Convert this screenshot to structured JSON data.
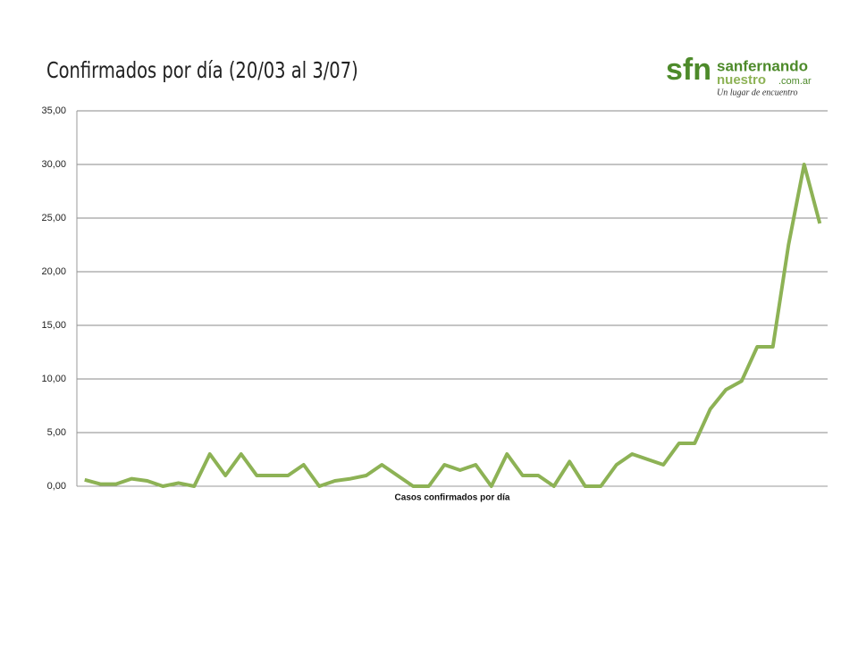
{
  "chart_data": {
    "type": "line",
    "title": "Confirmados por día (20/03 al 3/07)",
    "logo": {
      "mark": "sfn",
      "name": "sanfernando",
      "sub": "nuestro",
      "domain": ".com.ar",
      "tagline": "Un lugar de encuentro"
    },
    "categories": [
      null,
      null,
      null,
      null,
      null,
      null,
      null,
      null,
      null,
      null,
      null,
      null,
      null,
      null,
      null,
      null,
      null,
      null,
      null,
      null,
      null,
      null,
      null,
      null,
      null,
      null,
      null,
      null,
      null,
      null,
      null,
      null,
      null,
      null,
      null,
      null,
      null,
      null,
      null,
      null,
      null,
      null,
      null,
      null,
      null,
      null,
      null,
      null
    ],
    "series": [
      {
        "name": "Casos confirmados  por día",
        "color": "#8db255",
        "values": [
          0.6,
          0.2,
          0.2,
          0.7,
          0.5,
          0,
          0.3,
          0,
          3,
          1,
          3,
          1,
          1,
          1,
          2,
          0,
          0.5,
          0.7,
          1,
          2,
          1,
          0,
          0,
          2,
          1.5,
          2,
          0,
          3,
          1,
          1,
          0,
          2.3,
          0,
          0,
          2,
          3,
          2.5,
          2,
          4,
          4,
          7.2,
          9,
          9.8,
          13,
          13,
          22.5,
          30,
          24.5
        ]
      }
    ],
    "ylim": [
      0,
      35
    ],
    "yticks": [
      {
        "value": 0,
        "label": "0,00"
      },
      {
        "value": 5,
        "label": "5,00"
      },
      {
        "value": 10,
        "label": "10,00"
      },
      {
        "value": 15,
        "label": "15,00"
      },
      {
        "value": 20,
        "label": "20,00"
      },
      {
        "value": 25,
        "label": "25,00"
      },
      {
        "value": 30,
        "label": "30,00"
      },
      {
        "value": 35,
        "label": "35,00"
      }
    ],
    "grid": true
  }
}
